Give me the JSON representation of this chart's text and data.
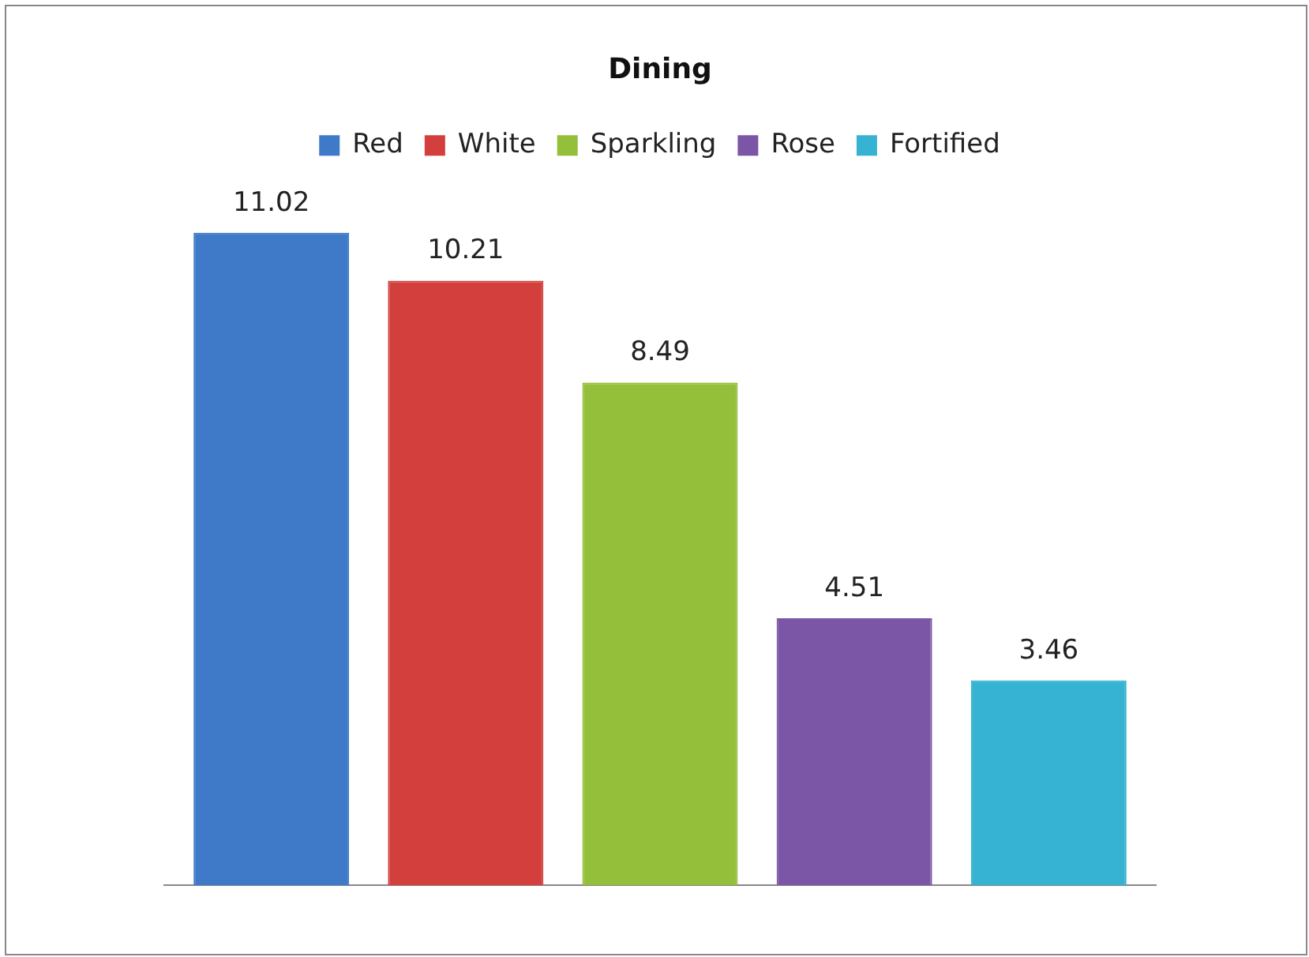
{
  "chart_data": {
    "type": "bar",
    "title": "Dining",
    "categories": [
      null
    ],
    "series": [
      {
        "name": "Red",
        "color": "#3f7ac9",
        "values": [
          11.02
        ]
      },
      {
        "name": "White",
        "color": "#d23f3c",
        "values": [
          10.21
        ]
      },
      {
        "name": "Sparkling",
        "color": "#93bf3a",
        "values": [
          8.49
        ]
      },
      {
        "name": "Rose",
        "color": "#7b56a6",
        "values": [
          4.51
        ]
      },
      {
        "name": "Fortified",
        "color": "#36b3d2",
        "values": [
          3.46
        ]
      }
    ],
    "data_labels": true,
    "legend": "top",
    "grid": false
  }
}
